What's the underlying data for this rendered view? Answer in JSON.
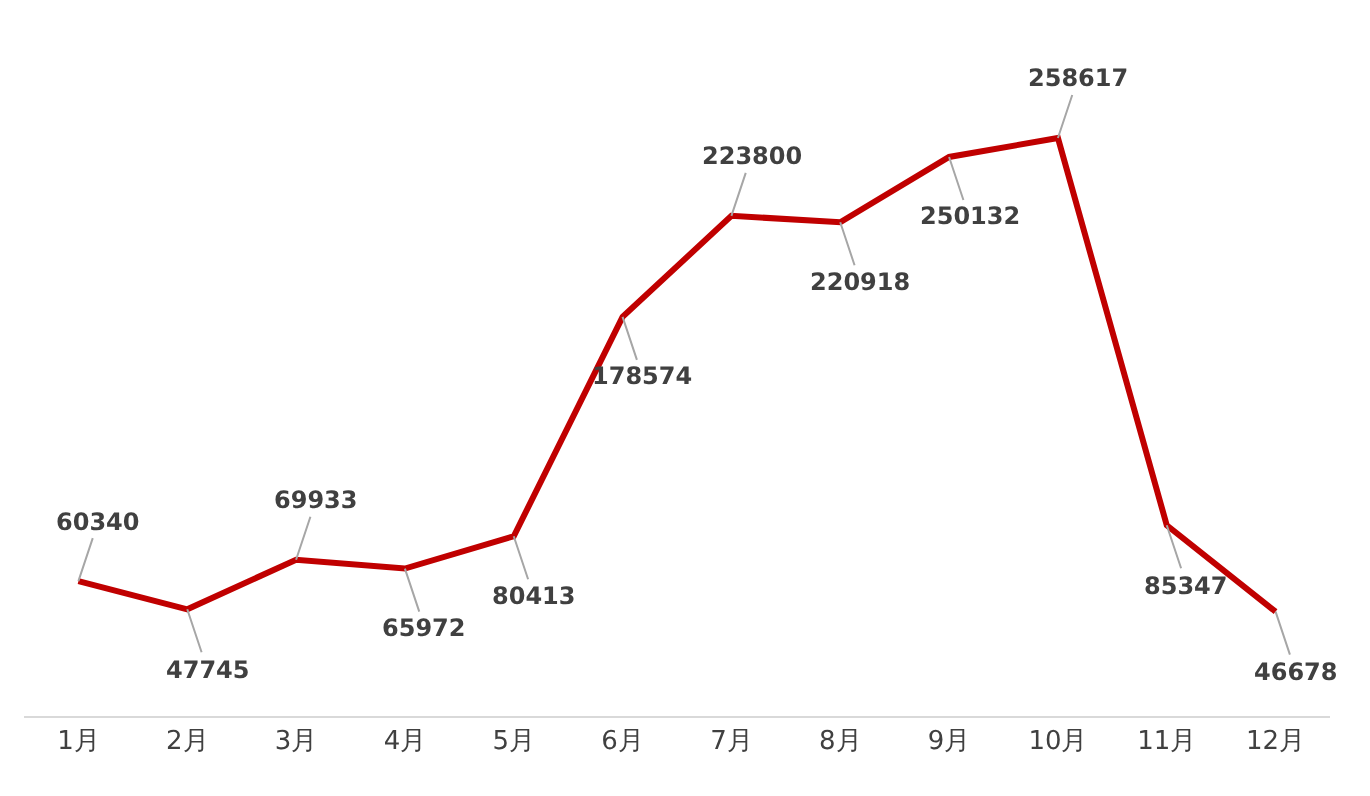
{
  "chart_data": {
    "type": "line",
    "categories": [
      "1月",
      "2月",
      "3月",
      "4月",
      "5月",
      "6月",
      "7月",
      "8月",
      "9月",
      "10月",
      "11月",
      "12月"
    ],
    "values": [
      60340,
      47745,
      69933,
      65972,
      80413,
      178574,
      223800,
      220918,
      250132,
      258617,
      85347,
      46678
    ],
    "color": "#c00000",
    "data_labels": true,
    "marker": "none",
    "line_style": "solid"
  }
}
